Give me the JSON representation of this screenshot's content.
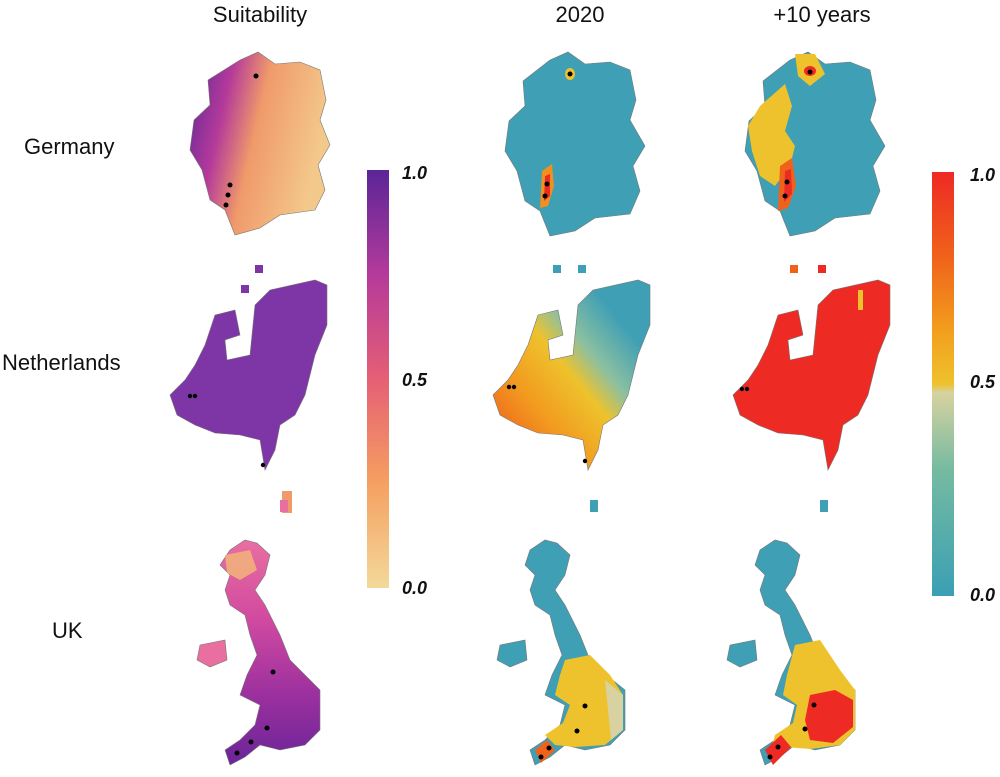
{
  "columns": {
    "suitability": "Suitability",
    "y2020": "2020",
    "plus10": "+10 years"
  },
  "rows": {
    "germany": "Germany",
    "netherlands": "Netherlands",
    "uk": "UK"
  },
  "legend_suitability": {
    "max": "1.0",
    "mid": "0.5",
    "min": "0.0",
    "colors": [
      "#f3d99b",
      "#f5a060",
      "#e55f75",
      "#b43a9a",
      "#5b2598"
    ]
  },
  "legend_probability": {
    "max": "1.0",
    "mid": "0.5",
    "min": "0.0",
    "colors": [
      "#3a9fb4",
      "#76bba1",
      "#d8d2a0",
      "#eec22c",
      "#f2a01e",
      "#f0621b",
      "#ee2a24"
    ]
  },
  "map_colors": {
    "suit_base": "#8c3fae",
    "suit_light": "#f2b47a",
    "teal": "#3f9fb5",
    "yellow": "#eec22c",
    "orange": "#f0901e",
    "red": "#ee2a24",
    "marker": "#000000"
  }
}
